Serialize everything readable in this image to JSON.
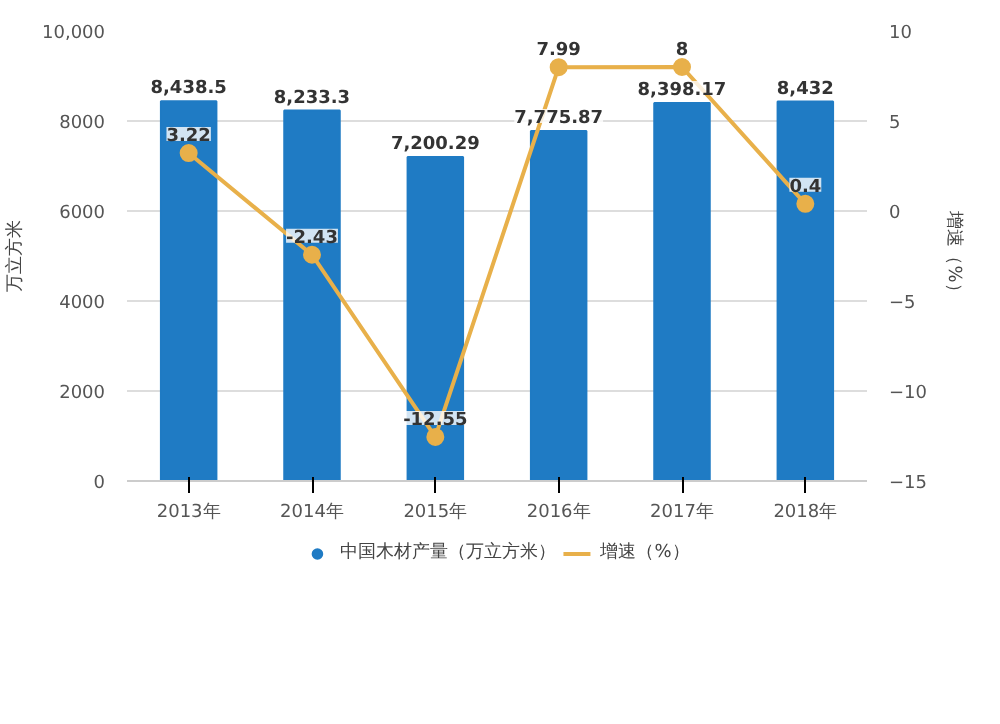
{
  "chart_data": {
    "type": "bar",
    "categories": [
      "2013年",
      "2014年",
      "2015年",
      "2016年",
      "2017年",
      "2018年"
    ],
    "series": [
      {
        "name": "中国木材产量（万立方米）",
        "color": "#1f7bc4",
        "values": [
          8438.5,
          8233.3,
          7200.29,
          7775.87,
          8398.17,
          8432
        ],
        "value_labels": [
          "8,438.5",
          "8,233.3",
          "7,200.29",
          "7,775.87",
          "8,398.17",
          "8,432"
        ]
      },
      {
        "name": "增速（%）",
        "type": "line",
        "axis": "y2",
        "color": "#e8b04a",
        "marker": "circle",
        "values": [
          3.22,
          -2.43,
          -12.55,
          7.99,
          8,
          0.4
        ],
        "value_labels": [
          "3.22",
          "-2.43",
          "-12.55",
          "7.99",
          "8",
          "0.4"
        ]
      }
    ],
    "ylabel": "万立方米",
    "y2label": "增速（%）",
    "ylim": [
      0,
      10000
    ],
    "yticks": [
      0,
      2000,
      4000,
      6000,
      8000,
      {
        "value": 10000,
        "label": "10,000"
      }
    ],
    "y2lim": [
      -15,
      10
    ],
    "y2ticks": [
      -15,
      -10,
      -5,
      0,
      5,
      10
    ],
    "grid": "y",
    "legend": "bottom"
  }
}
